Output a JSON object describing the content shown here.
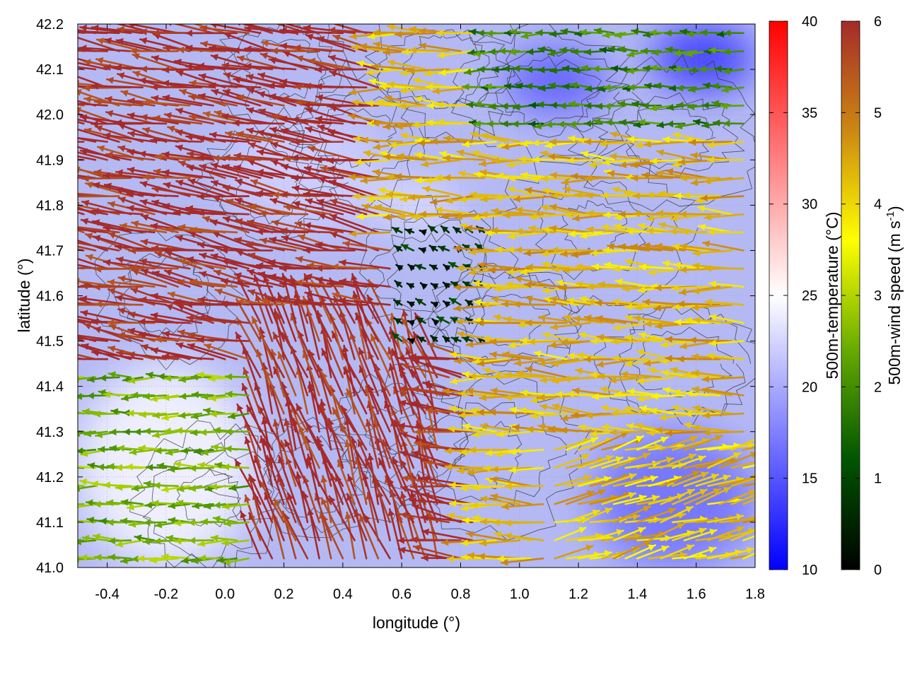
{
  "chart_data": {
    "type": "vector-field",
    "title": "",
    "xlabel": "longitude (°)",
    "ylabel": "latitude (°)",
    "xlim": [
      -0.5,
      1.8
    ],
    "ylim": [
      41.0,
      42.2
    ],
    "xticks": [
      "-0.4",
      "-0.2",
      "0.0",
      "0.2",
      "0.4",
      "0.6",
      "0.8",
      "1.0",
      "1.2",
      "1.4",
      "1.6",
      "1.8"
    ],
    "xtick_values": [
      -0.4,
      -0.2,
      0.0,
      0.2,
      0.4,
      0.6,
      0.8,
      1.0,
      1.2,
      1.4,
      1.6,
      1.8
    ],
    "yticks": [
      "41.0",
      "41.1",
      "41.2",
      "41.3",
      "41.4",
      "41.5",
      "41.6",
      "41.7",
      "41.8",
      "41.9",
      "42.0",
      "42.1",
      "42.2"
    ],
    "ytick_values": [
      41.0,
      41.1,
      41.2,
      41.3,
      41.4,
      41.5,
      41.6,
      41.7,
      41.8,
      41.9,
      42.0,
      42.1,
      42.2
    ],
    "grid": true,
    "background_field": {
      "name": "500m-temperature",
      "unit_label": "500m-temperature (°C)",
      "range": [
        10,
        40
      ],
      "colorbar_ticks": [
        "10",
        "15",
        "20",
        "25",
        "30",
        "35",
        "40"
      ],
      "colorbar_tick_values": [
        10,
        15,
        20,
        25,
        30,
        35,
        40
      ],
      "colormap": [
        "#0000ff",
        "#ffffff",
        "#ff0000"
      ],
      "regions": [
        {
          "lon": [
            -0.5,
            0.1
          ],
          "lat": [
            41.0,
            41.45
          ],
          "value": 24
        },
        {
          "lon": [
            0.0,
            0.55
          ],
          "lat": [
            41.75,
            42.0
          ],
          "value": 22
        },
        {
          "lon": [
            1.45,
            1.8
          ],
          "lat": [
            42.05,
            42.2
          ],
          "value": 14
        },
        {
          "lon": [
            0.95,
            1.3
          ],
          "lat": [
            42.0,
            42.15
          ],
          "value": 16
        },
        {
          "lon": [
            1.25,
            1.8
          ],
          "lat": [
            41.0,
            41.3
          ],
          "value": 17
        },
        {
          "lon": [
            0.5,
            0.8
          ],
          "lat": [
            41.75,
            41.85
          ],
          "value": 23
        }
      ]
    },
    "vector_field": {
      "name": "500m-wind speed",
      "colorbar_label": "500m-wind speed",
      "colorbar_unit": "(m s",
      "colorbar_unit_sup": "-1",
      "colorbar_unit_tail": ")",
      "range": [
        0,
        6
      ],
      "colorbar_ticks": [
        "0",
        "1",
        "2",
        "3",
        "4",
        "5",
        "6"
      ],
      "colorbar_tick_values": [
        0,
        1,
        2,
        3,
        4,
        5,
        6
      ],
      "colormap": [
        "#000000",
        "#005500",
        "#66aa00",
        "#ffff00",
        "#cc8811",
        "#a52a2a"
      ],
      "grid_spacing_deg": 0.04,
      "regimes": [
        {
          "zone": "north-west",
          "direction_deg": 170,
          "speed": 6
        },
        {
          "zone": "upper-middle",
          "direction_deg": 178,
          "speed": 4.3
        },
        {
          "zone": "north-east",
          "direction_deg": 180,
          "speed": 1.8
        },
        {
          "zone": "central-calm",
          "direction_deg": 150,
          "speed": 0.6
        },
        {
          "zone": "central-convergence",
          "direction_deg": 110,
          "speed": 6
        },
        {
          "zone": "south-west",
          "direction_deg": 180,
          "speed": 2.5
        },
        {
          "zone": "south-east",
          "direction_deg": 15,
          "speed": 4.2
        }
      ]
    },
    "contours": {
      "color": "#333333",
      "description": "terrain isolines"
    }
  }
}
